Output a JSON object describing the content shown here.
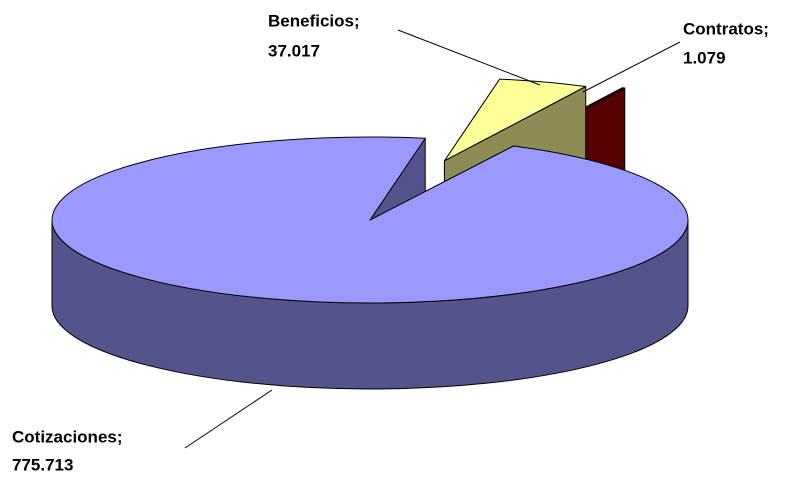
{
  "chart_data": {
    "type": "pie3d",
    "categories": [
      "Beneficios;",
      "Contratos;",
      "Cotizaciones;"
    ],
    "values": [
      37017,
      1079,
      775713
    ],
    "value_labels": [
      "37.017",
      "1.079",
      "775.713"
    ],
    "colors": [
      "#ffff99",
      "#990000",
      "#9999ff"
    ]
  }
}
